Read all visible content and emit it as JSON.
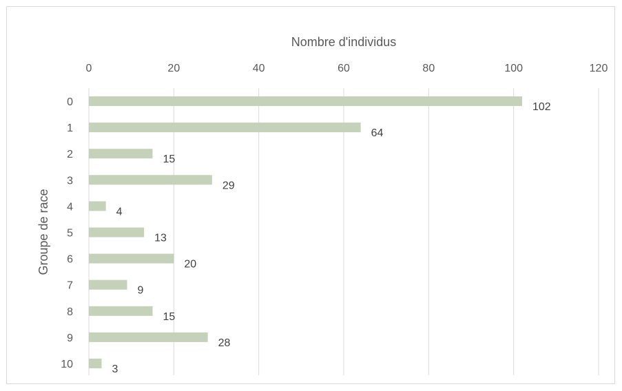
{
  "chart_data": {
    "type": "bar",
    "orientation": "horizontal",
    "title": "",
    "xlabel": "Nombre d'individus",
    "ylabel": "Groupe de race",
    "xaxis_position": "top",
    "xlim": [
      0,
      120
    ],
    "xticks": [
      0,
      20,
      40,
      60,
      80,
      100,
      120
    ],
    "categories": [
      "0",
      "1",
      "2",
      "3",
      "4",
      "5",
      "6",
      "7",
      "8",
      "9",
      "10"
    ],
    "values": [
      102,
      64,
      15,
      29,
      4,
      13,
      20,
      9,
      15,
      28,
      3
    ],
    "bar_color": "#c5d1b8",
    "grid": true,
    "legend": "none"
  }
}
